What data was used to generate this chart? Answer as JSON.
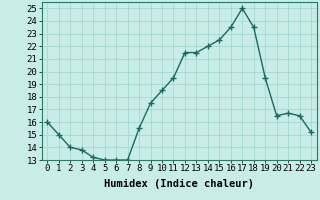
{
  "x": [
    0,
    1,
    2,
    3,
    4,
    5,
    6,
    7,
    8,
    9,
    10,
    11,
    12,
    13,
    14,
    15,
    16,
    17,
    18,
    19,
    20,
    21,
    22,
    23
  ],
  "y": [
    16,
    15,
    14,
    13.8,
    13.2,
    13,
    13,
    13,
    15.5,
    17.5,
    18.5,
    19.5,
    21.5,
    21.5,
    22,
    22.5,
    23.5,
    25,
    23.5,
    19.5,
    16.5,
    16.7,
    16.5,
    15.2
  ],
  "line_color": "#1a6b5a",
  "marker": "+",
  "marker_size": 4,
  "marker_color": "#1a6b5a",
  "bg_color": "#c8ece8",
  "grid_color": "#a0d4cc",
  "xlabel": "Humidex (Indice chaleur)",
  "ylim": [
    13,
    25.5
  ],
  "xlim": [
    -0.5,
    23.5
  ],
  "yticks": [
    13,
    14,
    15,
    16,
    17,
    18,
    19,
    20,
    21,
    22,
    23,
    24,
    25
  ],
  "xtick_labels": [
    "0",
    "1",
    "2",
    "3",
    "4",
    "5",
    "6",
    "7",
    "8",
    "9",
    "10",
    "11",
    "12",
    "13",
    "14",
    "15",
    "16",
    "17",
    "18",
    "19",
    "20",
    "21",
    "22",
    "23"
  ],
  "xlabel_fontsize": 7.5,
  "tick_fontsize": 6.5,
  "linewidth": 1.0
}
